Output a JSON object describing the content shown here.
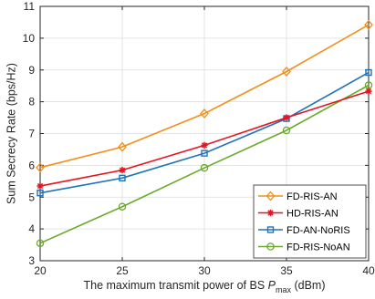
{
  "chart_data": {
    "type": "line",
    "xlabel_main": "The maximum transmit power of BS ",
    "xlabel_var": "P",
    "xlabel_sub": "max",
    "xlabel_unit": " (dBm)",
    "ylabel": "Sum Secrecy Rate (bps/Hz)",
    "x": [
      20,
      25,
      30,
      35,
      40
    ],
    "xlim": [
      20,
      40
    ],
    "ylim": [
      3,
      11
    ],
    "xticks": [
      "20",
      "25",
      "30",
      "35",
      "40"
    ],
    "yticks": [
      "3",
      "4",
      "5",
      "6",
      "7",
      "8",
      "9",
      "10",
      "11"
    ],
    "grid": true,
    "legend_position": "bottom-right",
    "series": [
      {
        "name": "FD-RIS-AN",
        "color": "#f28e1c",
        "marker": "diamond",
        "values": [
          5.93,
          6.58,
          7.63,
          8.95,
          10.42
        ]
      },
      {
        "name": "HD-RIS-AN",
        "color": "#e8131f",
        "marker": "asterisk",
        "values": [
          5.35,
          5.85,
          6.63,
          7.5,
          8.33
        ]
      },
      {
        "name": "FD-AN-NoRIS",
        "color": "#1f74b8",
        "marker": "square",
        "values": [
          5.13,
          5.6,
          6.38,
          7.47,
          8.92
        ]
      },
      {
        "name": "FD-RIS-NoAN",
        "color": "#6aaa2a",
        "marker": "circle",
        "values": [
          3.55,
          4.7,
          5.92,
          7.1,
          8.52
        ]
      }
    ]
  }
}
